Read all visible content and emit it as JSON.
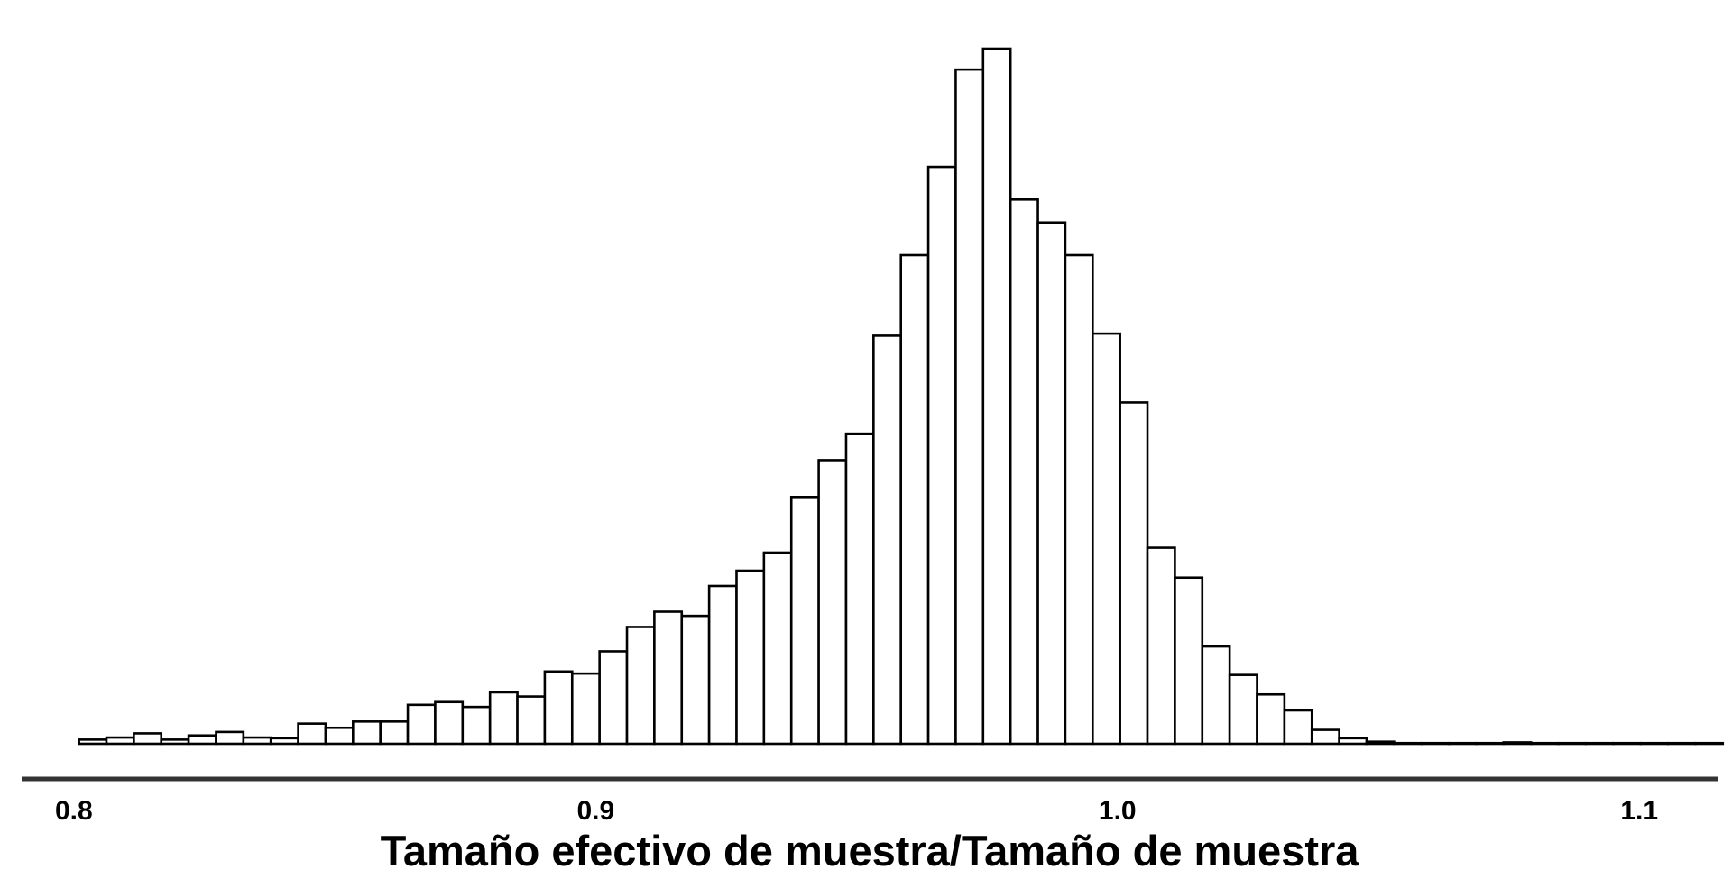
{
  "chart_data": {
    "type": "bar",
    "subtype": "histogram",
    "title": "",
    "xlabel": "Tamaño efectivo de muestra/Tamaño de muestra",
    "ylabel": "",
    "xlim": [
      0.79,
      1.115
    ],
    "ylim": [
      0,
      1000
    ],
    "x_ticks": [
      0.8,
      0.9,
      1.0,
      1.1
    ],
    "x_tick_labels": [
      "0.8",
      "0.9",
      "1.0",
      "1.1"
    ],
    "y_axis_visible": false,
    "grid": false,
    "legend": "none",
    "bin_start": 0.801,
    "bin_width": 0.00525,
    "counts": [
      6,
      9,
      15,
      6,
      12,
      17,
      9,
      8,
      29,
      23,
      32,
      32,
      56,
      60,
      53,
      74,
      68,
      104,
      101,
      133,
      168,
      190,
      184,
      227,
      249,
      275,
      355,
      408,
      446,
      587,
      703,
      830,
      970,
      1000,
      783,
      750,
      703,
      590,
      491,
      282,
      239,
      140,
      99,
      71,
      48,
      20,
      8,
      3,
      1,
      1,
      1,
      1,
      2,
      1,
      1,
      1,
      1,
      1,
      1,
      1
    ],
    "colors": {
      "bar_fill": "#ffffff",
      "bar_stroke": "#000000",
      "axis": "#333333"
    }
  }
}
